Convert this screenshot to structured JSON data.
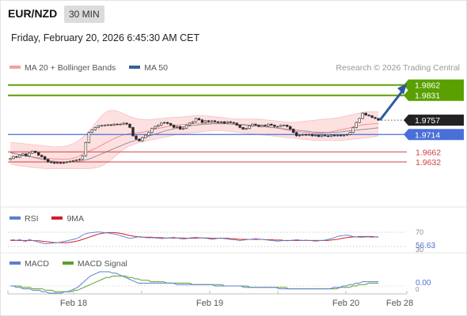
{
  "header": {
    "pair": "EUR/NZD",
    "timeframe": "30 MIN",
    "datetime": "Friday, February 20, 2026 6:45:30 AM CET"
  },
  "main_legend": [
    {
      "label": "MA 20 + Bollinger Bands",
      "color": "#f08080"
    },
    {
      "label": "MA 50",
      "color": "#3a5f9a"
    }
  ],
  "credit": "Research © 2026 Trading Central",
  "rsi_legend": [
    {
      "label": "RSI",
      "color": "#5a7fd0"
    },
    {
      "label": "9MA",
      "color": "#d0202a"
    }
  ],
  "macd_legend": [
    {
      "label": "MACD",
      "color": "#5a7fd0"
    },
    {
      "label": "MACD Signal",
      "color": "#5aa02a"
    }
  ],
  "colors": {
    "target": "#5aa000",
    "pivot": "#4a6fd8",
    "support": "#d04040",
    "last": "#222222",
    "arrow": "#2f5aa0",
    "candle": "#2a2a2a"
  },
  "chart_data": [
    {
      "type": "candlestick",
      "ylim": [
        1.958,
        1.988
      ],
      "x_tick_labels": [
        "Feb 18",
        "Feb 19",
        "Feb 20",
        "Feb 28"
      ],
      "levels": [
        {
          "value": 1.9862,
          "label": "1.9862",
          "kind": "target"
        },
        {
          "value": 1.9831,
          "label": "1.9831",
          "kind": "target"
        },
        {
          "value": 1.9757,
          "label": "1.9757",
          "kind": "last"
        },
        {
          "value": 1.9714,
          "label": "1.9714",
          "kind": "pivot"
        },
        {
          "value": 1.9662,
          "label": "1.9662",
          "kind": "support"
        },
        {
          "value": 1.9632,
          "label": "1.9632",
          "kind": "support"
        }
      ],
      "close": [
        1.9642,
        1.9648,
        1.9646,
        1.9652,
        1.9656,
        1.965,
        1.9658,
        1.9664,
        1.966,
        1.9652,
        1.9648,
        1.964,
        1.9632,
        1.963,
        1.9628,
        1.963,
        1.9628,
        1.963,
        1.9632,
        1.9634,
        1.9636,
        1.9638,
        1.964,
        1.965,
        1.969,
        1.972,
        1.9728,
        1.9735,
        1.974,
        1.9741,
        1.9742,
        1.9743,
        1.9742,
        1.9745,
        1.9744,
        1.9745,
        1.9748,
        1.9745,
        1.9735,
        1.971,
        1.97,
        1.9695,
        1.9705,
        1.9712,
        1.972,
        1.9732,
        1.9738,
        1.9742,
        1.9748,
        1.975,
        1.9747,
        1.9742,
        1.9735,
        1.9738,
        1.973,
        1.9733,
        1.9742,
        1.9748,
        1.9752,
        1.9762,
        1.9758,
        1.975,
        1.9755,
        1.9752,
        1.9755,
        1.9752,
        1.975,
        1.9752,
        1.9748,
        1.9752,
        1.975,
        1.9748,
        1.9742,
        1.9735,
        1.973,
        1.9732,
        1.974,
        1.9745,
        1.9742,
        1.9738,
        1.9742,
        1.974,
        1.9745,
        1.9742,
        1.9738,
        1.9738,
        1.9742,
        1.9742,
        1.9738,
        1.973,
        1.972,
        1.971,
        1.9712,
        1.9714,
        1.9712,
        1.9714,
        1.971,
        1.9712,
        1.9708,
        1.9712,
        1.971,
        1.9708,
        1.9712,
        1.971,
        1.9712,
        1.971,
        1.9712,
        1.9714,
        1.972,
        1.9735,
        1.975,
        1.9762,
        1.9778,
        1.9772,
        1.977,
        1.9765,
        1.9762,
        1.9757
      ],
      "ma20": [
        1.966,
        1.9658,
        1.9656,
        1.9654,
        1.9652,
        1.965,
        1.9648,
        1.9647,
        1.9646,
        1.9645,
        1.9644,
        1.9643,
        1.9642,
        1.9642,
        1.9641,
        1.9641,
        1.964,
        1.964,
        1.964,
        1.9641,
        1.9643,
        1.9646,
        1.965,
        1.9655,
        1.966,
        1.9664,
        1.9668,
        1.9672,
        1.9677,
        1.9682,
        1.9687,
        1.9692,
        1.9697,
        1.9702,
        1.9706,
        1.971,
        1.9713,
        1.9715,
        1.9717,
        1.9718,
        1.9719,
        1.972,
        1.9721,
        1.9723,
        1.9725,
        1.9727,
        1.973,
        1.9732,
        1.9734,
        1.9736,
        1.9738,
        1.974,
        1.9741,
        1.9742,
        1.9743,
        1.9744,
        1.9745,
        1.9745,
        1.9746,
        1.9746,
        1.9747,
        1.9747,
        1.9747,
        1.9748,
        1.9748,
        1.9748,
        1.9748,
        1.9748,
        1.9747,
        1.9746,
        1.9745,
        1.9744,
        1.9743,
        1.9742,
        1.9742,
        1.9741,
        1.9741,
        1.974,
        1.974,
        1.974,
        1.9739,
        1.9738,
        1.9737,
        1.9736,
        1.9735,
        1.9733,
        1.9731,
        1.9729,
        1.9727,
        1.9725,
        1.9724,
        1.9723,
        1.9722,
        1.9721,
        1.972,
        1.9719,
        1.9718,
        1.9718,
        1.9718,
        1.9718,
        1.9719,
        1.972,
        1.9722,
        1.9724,
        1.9726,
        1.9728,
        1.973,
        1.9732,
        1.9734,
        1.9737,
        1.9739,
        1.9741,
        1.9743,
        1.9744,
        1.9745,
        1.9746,
        1.9746,
        1.9747
      ],
      "bb_upper": [
        1.969,
        1.969,
        1.9689,
        1.9688,
        1.9687,
        1.9686,
        1.9685,
        1.9684,
        1.9683,
        1.9682,
        1.9681,
        1.968,
        1.9679,
        1.9678,
        1.9677,
        1.9677,
        1.9677,
        1.9678,
        1.968,
        1.9683,
        1.9687,
        1.9692,
        1.9698,
        1.9705,
        1.9714,
        1.9724,
        1.9735,
        1.9747,
        1.9759,
        1.977,
        1.9778,
        1.9784,
        1.9786,
        1.9786,
        1.9784,
        1.978,
        1.9776,
        1.9772,
        1.9768,
        1.9765,
        1.9762,
        1.976,
        1.9759,
        1.9758,
        1.9758,
        1.9759,
        1.976,
        1.9761,
        1.9762,
        1.9763,
        1.9764,
        1.9765,
        1.9765,
        1.9766,
        1.9766,
        1.9767,
        1.9768,
        1.9769,
        1.977,
        1.9771,
        1.9771,
        1.9771,
        1.977,
        1.9769,
        1.9768,
        1.9767,
        1.9766,
        1.9765,
        1.9764,
        1.9763,
        1.9762,
        1.9761,
        1.976,
        1.976,
        1.976,
        1.976,
        1.976,
        1.976,
        1.976,
        1.976,
        1.9759,
        1.9758,
        1.9757,
        1.9756,
        1.9755,
        1.9754,
        1.9753,
        1.9752,
        1.9751,
        1.975,
        1.975,
        1.9751,
        1.9752,
        1.9753,
        1.9754,
        1.9755,
        1.9756,
        1.9757,
        1.9758,
        1.9759,
        1.976,
        1.9761,
        1.9762,
        1.9763,
        1.9764,
        1.9766,
        1.9768,
        1.977,
        1.9772,
        1.9774,
        1.9776,
        1.9778,
        1.978,
        1.9782,
        1.9782,
        1.9782,
        1.9782,
        1.9782
      ],
      "bb_lower": [
        1.9626,
        1.9624,
        1.9622,
        1.962,
        1.9619,
        1.9618,
        1.9617,
        1.9616,
        1.9615,
        1.9614,
        1.9613,
        1.9612,
        1.9612,
        1.9612,
        1.9612,
        1.9612,
        1.9612,
        1.9612,
        1.9612,
        1.9612,
        1.9612,
        1.9612,
        1.9612,
        1.9612,
        1.9612,
        1.9612,
        1.9613,
        1.9614,
        1.9616,
        1.962,
        1.9625,
        1.9631,
        1.9638,
        1.9646,
        1.9654,
        1.9662,
        1.9669,
        1.9675,
        1.968,
        1.9684,
        1.9687,
        1.969,
        1.9692,
        1.9694,
        1.9696,
        1.9698,
        1.97,
        1.9702,
        1.9704,
        1.9706,
        1.9708,
        1.971,
        1.9712,
        1.9714,
        1.9715,
        1.9716,
        1.9717,
        1.9718,
        1.9719,
        1.972,
        1.9721,
        1.9722,
        1.9723,
        1.9724,
        1.9725,
        1.9726,
        1.9726,
        1.9726,
        1.9725,
        1.9724,
        1.9723,
        1.9722,
        1.9721,
        1.972,
        1.9719,
        1.9718,
        1.9717,
        1.9716,
        1.9715,
        1.9714,
        1.9713,
        1.9712,
        1.9711,
        1.971,
        1.9709,
        1.9708,
        1.9707,
        1.9706,
        1.9705,
        1.9704,
        1.9703,
        1.9702,
        1.9701,
        1.97,
        1.9699,
        1.9698,
        1.9697,
        1.9696,
        1.9696,
        1.9696,
        1.9696,
        1.9696,
        1.9696,
        1.9696,
        1.9696,
        1.9696,
        1.9697,
        1.9698,
        1.9699,
        1.97,
        1.9701,
        1.9702,
        1.9703,
        1.9704,
        1.9705,
        1.9706,
        1.9708,
        1.971
      ],
      "ma50": [
        1.966,
        1.9658,
        1.9656,
        1.9654,
        1.9652,
        1.965,
        1.9648,
        1.9646,
        1.9644,
        1.9642,
        1.964,
        1.9638,
        1.9636,
        1.9635,
        1.9634,
        1.9633,
        1.9632,
        1.9632,
        1.9632,
        1.9632,
        1.9632,
        1.9633,
        1.9634,
        1.9636,
        1.9638,
        1.9641,
        1.9644,
        1.9648,
        1.9652,
        1.9656,
        1.966,
        1.9664,
        1.9668,
        1.9672,
        1.9676,
        1.968,
        1.9684,
        1.9688,
        1.9691,
        1.9694,
        1.9697,
        1.97,
        1.9703,
        1.9706,
        1.9709,
        1.9712,
        1.9715,
        1.9718,
        1.9721,
        1.9724,
        1.9727,
        1.9729,
        1.9731,
        1.9733,
        1.9735,
        1.9737,
        1.9739,
        1.974,
        1.9741,
        1.9742,
        1.9743,
        1.9744,
        1.9745,
        1.9745,
        1.9746,
        1.9746,
        1.9746,
        1.9746,
        1.9746,
        1.9746,
        1.9746,
        1.9745,
        1.9745,
        1.9744,
        1.9744,
        1.9743,
        1.9742,
        1.9741,
        1.974,
        1.9739,
        1.9738,
        1.9737,
        1.9736,
        1.9735,
        1.9734,
        1.9733,
        1.9732,
        1.9731,
        1.973,
        1.9729,
        1.9728,
        1.9727,
        1.9726,
        1.9725,
        1.9724,
        1.9723,
        1.9722,
        1.9721,
        1.9721,
        1.972,
        1.972,
        1.972,
        1.972,
        1.972,
        1.9721,
        1.9722,
        1.9723,
        1.9724,
        1.9725,
        1.9726,
        1.9727,
        1.9728,
        1.9729,
        1.973,
        1.9731,
        1.9732,
        1.9733,
        1.9734
      ],
      "forecast": {
        "from": 1.9757,
        "to": 1.9862
      }
    },
    {
      "type": "line",
      "name": "RSI",
      "ylim": [
        30,
        70
      ],
      "tick_labels": [
        "70",
        "30"
      ],
      "value_label": "56.63",
      "rsi": [
        48,
        49,
        47,
        50,
        46,
        44,
        50,
        47,
        45,
        42,
        40,
        38,
        38,
        39,
        40,
        41,
        42,
        44,
        46,
        48,
        50,
        52,
        56,
        62,
        66,
        68,
        69,
        70,
        71,
        70,
        69,
        68,
        67,
        65,
        63,
        60,
        58,
        55,
        53,
        54,
        56,
        58,
        57,
        55,
        54,
        55,
        54,
        53,
        52,
        53,
        54,
        55,
        56,
        54,
        52,
        51,
        52,
        54,
        55,
        56,
        55,
        54,
        53,
        52,
        50,
        51,
        53,
        54,
        52,
        51,
        50,
        49,
        48,
        47,
        48,
        49,
        50,
        51,
        52,
        51,
        50,
        49,
        48,
        47,
        46,
        45,
        46,
        47,
        46,
        47,
        48,
        49,
        48,
        47,
        48,
        47,
        46,
        45,
        46,
        47,
        48,
        50,
        52,
        55,
        58,
        60,
        61,
        62,
        60,
        58,
        57,
        56,
        56,
        57,
        57,
        56,
        57,
        56
      ],
      "ma9": [
        47,
        47,
        47,
        47,
        47,
        47,
        47,
        47,
        46,
        46,
        45,
        44,
        43,
        42,
        41,
        41,
        41,
        41,
        41,
        42,
        43,
        45,
        47,
        50,
        53,
        56,
        59,
        62,
        65,
        67,
        68,
        69,
        69,
        69,
        68,
        67,
        65,
        63,
        61,
        59,
        58,
        57,
        56,
        56,
        56,
        56,
        55,
        55,
        55,
        54,
        54,
        54,
        54,
        54,
        54,
        54,
        53,
        53,
        53,
        54,
        54,
        54,
        54,
        54,
        53,
        53,
        53,
        53,
        53,
        53,
        52,
        52,
        51,
        50,
        50,
        50,
        50,
        50,
        50,
        50,
        50,
        49,
        49,
        49,
        48,
        48,
        48,
        47,
        47,
        47,
        47,
        47,
        47,
        47,
        47,
        47,
        47,
        47,
        47,
        47,
        47,
        47,
        48,
        49,
        50,
        52,
        54,
        55,
        56,
        57,
        57,
        58,
        58,
        58,
        58,
        58,
        57,
        57
      ]
    },
    {
      "type": "line",
      "name": "MACD",
      "ylim": [
        -0.0006,
        0.0012
      ],
      "tick_labels": [
        "0"
      ],
      "value_label": "0.00",
      "macd": [
        0.0,
        0.0,
        -0.0001,
        -0.0001,
        -0.0002,
        -0.0002,
        -0.0002,
        -0.0003,
        -0.0003,
        -0.0003,
        -0.0004,
        -0.0004,
        -0.0005,
        -0.0005,
        -0.0005,
        -0.0005,
        -0.0005,
        -0.0004,
        -0.0004,
        -0.0003,
        -0.0002,
        -0.0001,
        0.0001,
        0.0003,
        0.0005,
        0.0007,
        0.0008,
        0.0009,
        0.001,
        0.001,
        0.001,
        0.001,
        0.0009,
        0.0009,
        0.0008,
        0.0007,
        0.0006,
        0.0005,
        0.0004,
        0.0003,
        0.0002,
        0.0002,
        0.0002,
        0.0002,
        0.0002,
        0.0002,
        0.0002,
        0.0002,
        0.0002,
        0.0002,
        0.0002,
        0.0002,
        0.0001,
        0.0001,
        0.0001,
        0.0001,
        0.0001,
        0.0001,
        0.0001,
        0.0001,
        0.0001,
        0.0001,
        0.0001,
        0.0001,
        0.0,
        0.0,
        0.0,
        0.0,
        0.0,
        0.0,
        0.0,
        0.0,
        0.0,
        -0.0001,
        -0.0001,
        -0.0001,
        -0.0001,
        -0.0001,
        -0.0001,
        -0.0001,
        -0.0001,
        -0.0001,
        -0.0001,
        -0.0001,
        -0.0002,
        -0.0002,
        -0.0002,
        -0.0002,
        -0.0002,
        -0.0002,
        -0.0002,
        -0.0002,
        -0.0002,
        -0.0002,
        -0.0002,
        -0.0002,
        -0.0002,
        -0.0002,
        -0.0002,
        -0.0002,
        -0.0002,
        -0.0001,
        -0.0001,
        -0.0001,
        0.0,
        0.0,
        0.0001,
        0.0001,
        0.0002,
        0.0002,
        0.0003,
        0.0003,
        0.0003,
        0.0003,
        0.0003,
        0.0003
      ],
      "signal": [
        0.0,
        0.0,
        0.0,
        0.0,
        -0.0001,
        -0.0001,
        -0.0001,
        -0.0002,
        -0.0002,
        -0.0002,
        -0.0002,
        -0.0003,
        -0.0003,
        -0.0003,
        -0.0004,
        -0.0004,
        -0.0004,
        -0.0004,
        -0.0004,
        -0.0004,
        -0.0003,
        -0.0003,
        -0.0002,
        -0.0001,
        0.0,
        0.0001,
        0.0002,
        0.0003,
        0.0004,
        0.0005,
        0.0006,
        0.0006,
        0.0007,
        0.0007,
        0.0007,
        0.0007,
        0.0007,
        0.0006,
        0.0006,
        0.0005,
        0.0005,
        0.0004,
        0.0004,
        0.0004,
        0.0003,
        0.0003,
        0.0003,
        0.0003,
        0.0003,
        0.0002,
        0.0002,
        0.0002,
        0.0002,
        0.0002,
        0.0002,
        0.0002,
        0.0002,
        0.0001,
        0.0001,
        0.0001,
        0.0001,
        0.0001,
        0.0001,
        0.0001,
        0.0001,
        0.0001,
        0.0001,
        0.0,
        0.0,
        0.0,
        0.0,
        0.0,
        0.0,
        0.0,
        0.0,
        -0.0001,
        -0.0001,
        -0.0001,
        -0.0001,
        -0.0001,
        -0.0001,
        -0.0001,
        -0.0001,
        -0.0001,
        -0.0001,
        -0.0001,
        -0.0001,
        -0.0002,
        -0.0002,
        -0.0002,
        -0.0002,
        -0.0002,
        -0.0002,
        -0.0002,
        -0.0002,
        -0.0002,
        -0.0002,
        -0.0002,
        -0.0002,
        -0.0002,
        -0.0002,
        -0.0002,
        -0.0002,
        -0.0001,
        -0.0001,
        -0.0001,
        -0.0001,
        0.0,
        0.0,
        0.0001,
        0.0001,
        0.0001,
        0.0002,
        0.0002,
        0.0002,
        0.0002
      ]
    }
  ]
}
